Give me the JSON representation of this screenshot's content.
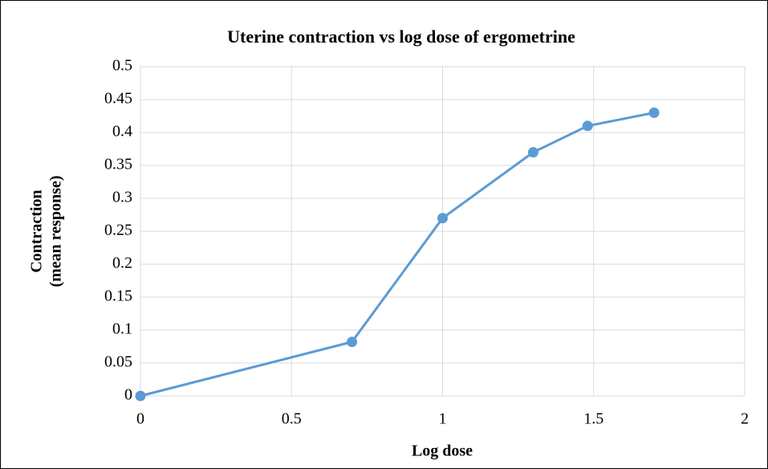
{
  "chart_data": {
    "type": "line",
    "title": "Uterine contraction vs log dose of ergometrine",
    "xlabel": "Log dose",
    "ylabel": [
      "Contraction",
      "(mean response)"
    ],
    "x": [
      0,
      0.7,
      1,
      1.3,
      1.48,
      1.7
    ],
    "series": [
      {
        "name": "Contraction",
        "color": "#5b9bd5",
        "values": [
          0,
          0.082,
          0.27,
          0.37,
          0.41,
          0.43
        ]
      }
    ],
    "xlim": [
      0,
      2
    ],
    "xticks": [
      0,
      0.5,
      1,
      1.5,
      2
    ],
    "ylim": [
      0,
      0.5
    ],
    "yticks": [
      0,
      0.05,
      0.1,
      0.15,
      0.2,
      0.25,
      0.3,
      0.35,
      0.4,
      0.45,
      0.5
    ],
    "grid": true,
    "markers": true
  }
}
